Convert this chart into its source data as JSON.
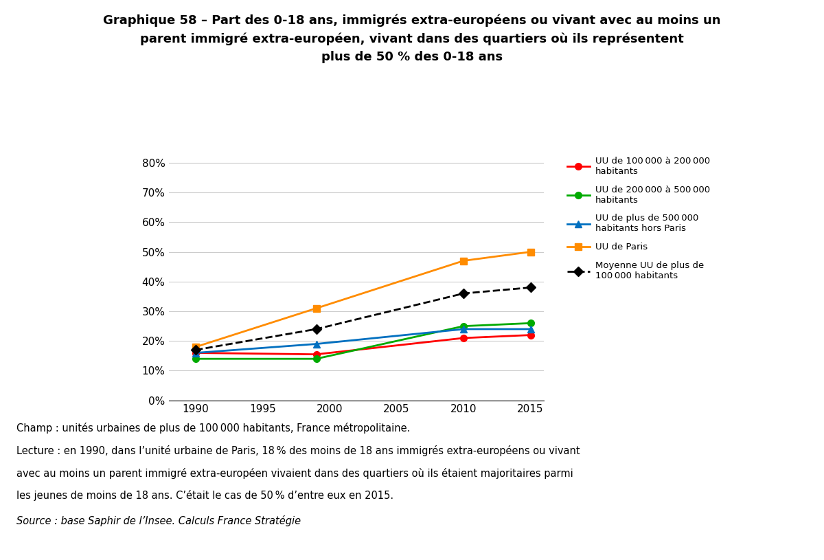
{
  "title_line1": "Graphique 58 – Part des 0-18 ans, immigrés extra-européens ou vivant avec au moins un",
  "title_line2": "parent immigré extra-européen, vivant dans des quartiers où ils représentent",
  "title_line3": "plus de 50 % des 0-18 ans",
  "years": [
    1990,
    1999,
    2010,
    2015
  ],
  "series": [
    {
      "label": "UU de 100 000 à 200 000\nhabitants",
      "color": "#FF0000",
      "marker": "o",
      "dashed": false,
      "values": [
        0.16,
        0.155,
        0.21,
        0.22
      ]
    },
    {
      "label": "UU de 200 000 à 500 000\nhabitants",
      "color": "#00AA00",
      "marker": "o",
      "dashed": false,
      "values": [
        0.14,
        0.14,
        0.25,
        0.26
      ]
    },
    {
      "label": "UU de plus de 500 000\nhabitants hors Paris",
      "color": "#0070C0",
      "marker": "^",
      "dashed": false,
      "values": [
        0.16,
        0.19,
        0.24,
        0.24
      ]
    },
    {
      "label": "UU de Paris",
      "color": "#FF8C00",
      "marker": "s",
      "dashed": false,
      "values": [
        0.18,
        0.31,
        0.47,
        0.5
      ]
    },
    {
      "label": "Moyenne UU de plus de\n100 000 habitants",
      "color": "#000000",
      "marker": "D",
      "dashed": true,
      "values": [
        0.17,
        0.24,
        0.36,
        0.38
      ]
    }
  ],
  "ylim": [
    0,
    0.82
  ],
  "yticks": [
    0.0,
    0.1,
    0.2,
    0.3,
    0.4,
    0.5,
    0.6,
    0.7,
    0.8
  ],
  "xticks": [
    1990,
    1995,
    2000,
    2005,
    2010,
    2015
  ],
  "background_color": "#FFFFFF",
  "footnote1": "Champ : unités urbaines de plus de 100 000 habitants, France métropolitaine.",
  "footnote2": "Lecture : en 1990, dans l’unité urbaine de Paris, 18 % des moins de 18 ans immigrés extra-européens ou vivant",
  "footnote3": "avec au moins un parent immigré extra-européen vivaient dans des quartiers où ils étaient majoritaires parmi",
  "footnote4": "les jeunes de moins de 18 ans. C’était le cas de 50 % d’entre eux en 2015.",
  "footnote5": "Source : base Saphir de l’Insee. Calculs France Stratégie"
}
